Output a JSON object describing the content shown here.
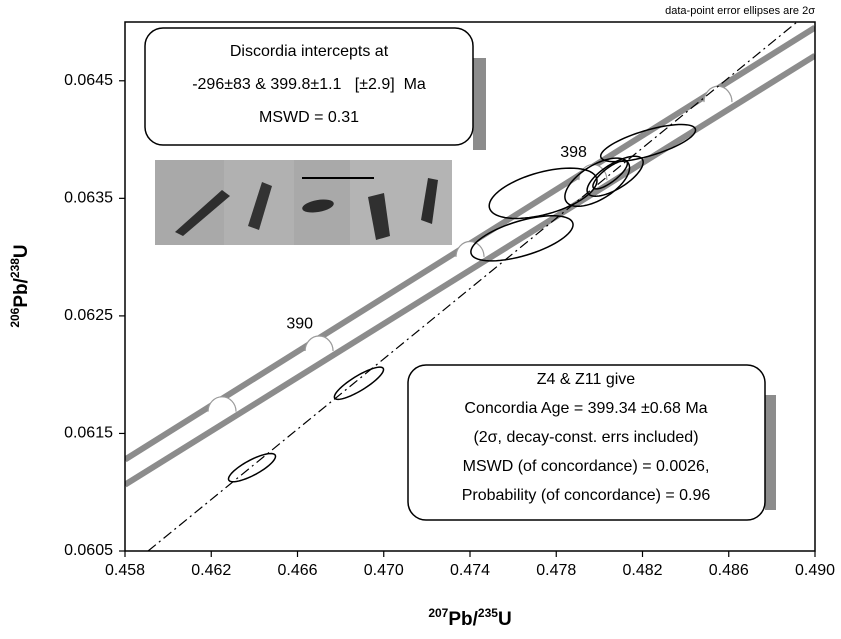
{
  "chart_data": {
    "type": "concordia",
    "note": "data-point error ellipses are 2σ",
    "xlabel_parts": [
      "207",
      "Pb/",
      "235",
      "U"
    ],
    "ylabel_parts": [
      "206",
      "Pb/",
      "238",
      "U"
    ],
    "xlim": [
      0.458,
      0.49
    ],
    "ylim": [
      0.0605,
      0.065
    ],
    "xticks": [
      0.458,
      0.462,
      0.466,
      {
        "value": 0.47,
        "label": "0.470"
      },
      0.474,
      0.478,
      0.482,
      0.486,
      {
        "value": 0.49,
        "label": "0.490"
      }
    ],
    "yticks": [
      0.0605,
      0.0615,
      0.0625,
      0.0635,
      0.0645
    ],
    "concordia_color": "#8c8c8c",
    "concordia_band": [
      {
        "x": [
          0.458,
          0.49
        ],
        "y": [
          0.061278,
          0.064953
        ]
      },
      {
        "x": [
          0.458,
          0.49
        ],
        "y": [
          0.061064,
          0.064714
        ]
      }
    ],
    "concordia_ticks": {
      "x": [
        0.4625,
        0.467,
        0.474,
        0.4797,
        0.4855
      ],
      "labels": [
        null,
        "390",
        null,
        "398",
        null
      ]
    },
    "discordia": {
      "x": [
        0.45907,
        0.4893
      ],
      "y": [
        0.0605,
        0.06502
      ]
    },
    "ellipses": [
      {
        "x": 0.46389,
        "y": 0.061209,
        "x_err": 0.00109,
        "y_err": 0.00012,
        "rho": 0.8
      },
      {
        "x": 0.46885,
        "y": 0.061927,
        "x_err": 0.00114,
        "y_err": 0.000137,
        "rho": 0.85
      },
      {
        "x": 0.47641,
        "y": 0.06316,
        "x_err": 0.00237,
        "y_err": 0.000192,
        "rho": 0.6
      },
      {
        "x": 0.47739,
        "y": 0.063543,
        "x_err": 0.0025,
        "y_err": 0.000214,
        "rho": 0.5
      },
      {
        "x": 0.4799,
        "y": 0.063637,
        "x_err": 0.0015,
        "y_err": 0.000205,
        "rho": 0.6
      },
      {
        "x": 0.48073,
        "y": 0.063688,
        "x_err": 0.0013,
        "y_err": 0.00017,
        "rho": 0.7
      },
      {
        "x": 0.48226,
        "y": 0.06397,
        "x_err": 0.0022,
        "y_err": 0.000158,
        "rho": 0.7
      },
      {
        "x": 0.4805,
        "y": 0.0637,
        "x_err": 0.0008,
        "y_err": 0.00012,
        "rho": 0.8
      }
    ],
    "discordia_box": [
      "Discordia intercepts at",
      "-296±83 & 399.8±1.1   [±2.9]  Ma",
      "MSWD = 0.31"
    ],
    "concordia_box": [
      "Z4 & Z11 give",
      "Concordia Age = 399.34 ±0.68 Ma",
      "(2σ, decay-const. errs included)",
      "MSWD (of concordance) = 0.0026,",
      "Probability (of concordance) = 0.96"
    ]
  }
}
